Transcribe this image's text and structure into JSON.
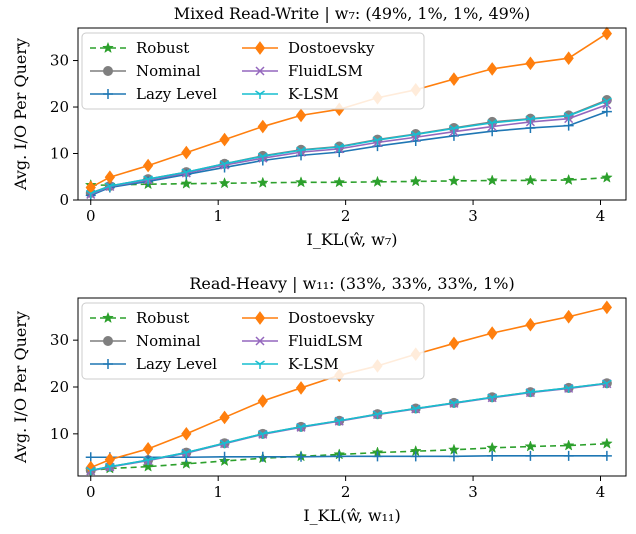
{
  "chart_data": [
    {
      "type": "line",
      "title": "Mixed Read-Write | w₇: (49%, 1%, 1%, 49%)",
      "xlabel": "I_KL(ŵ, w₇)",
      "ylabel": "Avg. I/O Per Query",
      "xlim": [
        -0.1,
        4.2
      ],
      "ylim": [
        0,
        37
      ],
      "xticks": [
        0,
        1,
        2,
        3,
        4
      ],
      "yticks": [
        0,
        10,
        20,
        30
      ],
      "legend": "top-left",
      "x": [
        0,
        0.15,
        0.45,
        0.75,
        1.05,
        1.35,
        1.65,
        1.95,
        2.25,
        2.55,
        2.85,
        3.15,
        3.45,
        3.75,
        4.05
      ],
      "series": [
        {
          "name": "Robust",
          "color": "#2ca02c",
          "marker": "star",
          "dash": "6,4",
          "values": [
            3.2,
            3.2,
            3.4,
            3.5,
            3.6,
            3.7,
            3.8,
            3.8,
            3.9,
            4.0,
            4.1,
            4.2,
            4.2,
            4.3,
            4.8
          ]
        },
        {
          "name": "Nominal",
          "color": "#7f7f7f",
          "marker": "circle",
          "dash": "",
          "values": [
            1.5,
            3.0,
            4.5,
            6.0,
            7.8,
            9.5,
            10.8,
            11.5,
            13.0,
            14.2,
            15.5,
            16.8,
            17.5,
            18.2,
            21.5
          ]
        },
        {
          "name": "Lazy Level",
          "color": "#1f77b4",
          "marker": "plus",
          "dash": "",
          "values": [
            1.0,
            2.7,
            4.0,
            5.5,
            7.0,
            8.5,
            9.6,
            10.3,
            11.6,
            12.7,
            13.8,
            14.8,
            15.5,
            16.0,
            19.0
          ]
        },
        {
          "name": "Dostoevsky",
          "color": "#ff7f0e",
          "marker": "diamond",
          "dash": "",
          "values": [
            2.7,
            4.9,
            7.4,
            10.2,
            13.0,
            15.8,
            18.2,
            19.5,
            22.0,
            23.7,
            26.0,
            28.2,
            29.4,
            30.5,
            35.8
          ]
        },
        {
          "name": "FluidLSM",
          "color": "#9467bd",
          "marker": "x",
          "dash": "",
          "values": [
            1.2,
            2.9,
            4.3,
            5.8,
            7.5,
            9.0,
            10.3,
            11.0,
            12.4,
            13.5,
            14.7,
            15.8,
            16.8,
            17.5,
            20.5
          ]
        },
        {
          "name": "K-LSM",
          "color": "#17becf",
          "marker": "tri",
          "dash": "",
          "values": [
            1.4,
            3.0,
            4.5,
            6.0,
            7.8,
            9.4,
            10.7,
            11.4,
            12.9,
            14.1,
            15.4,
            16.6,
            17.4,
            18.1,
            21.3
          ]
        }
      ]
    },
    {
      "type": "line",
      "title": "Read-Heavy | w₁₁: (33%, 33%, 33%, 1%)",
      "xlabel": "I_KL(ŵ, w₁₁)",
      "ylabel": "Avg. I/O Per Query",
      "xlim": [
        -0.1,
        4.2
      ],
      "ylim": [
        1,
        39
      ],
      "xticks": [
        0,
        1,
        2,
        3,
        4
      ],
      "yticks": [
        10,
        20,
        30
      ],
      "legend": "top-left",
      "x": [
        0,
        0.15,
        0.45,
        0.75,
        1.05,
        1.35,
        1.65,
        1.95,
        2.25,
        2.55,
        2.85,
        3.15,
        3.45,
        3.75,
        4.05
      ],
      "series": [
        {
          "name": "Robust",
          "color": "#2ca02c",
          "marker": "star",
          "dash": "6,4",
          "values": [
            2.2,
            2.6,
            3.0,
            3.6,
            4.2,
            4.8,
            5.2,
            5.6,
            6.0,
            6.3,
            6.6,
            7.0,
            7.3,
            7.5,
            7.9
          ]
        },
        {
          "name": "Nominal",
          "color": "#7f7f7f",
          "marker": "circle",
          "dash": "",
          "values": [
            2.2,
            3.0,
            4.4,
            6.0,
            8.0,
            10.0,
            11.5,
            12.8,
            14.2,
            15.4,
            16.6,
            17.8,
            18.9,
            19.8,
            20.8
          ]
        },
        {
          "name": "Lazy Level",
          "color": "#1f77b4",
          "marker": "plus",
          "dash": "",
          "values": [
            5.0,
            5.0,
            5.0,
            5.0,
            5.1,
            5.1,
            5.1,
            5.2,
            5.2,
            5.2,
            5.2,
            5.3,
            5.3,
            5.3,
            5.3
          ]
        },
        {
          "name": "Dostoevsky",
          "color": "#ff7f0e",
          "marker": "diamond",
          "dash": "",
          "values": [
            2.8,
            4.5,
            6.8,
            10.0,
            13.5,
            17.0,
            19.8,
            22.5,
            24.5,
            27.0,
            29.3,
            31.5,
            33.3,
            35.0,
            37.0
          ]
        },
        {
          "name": "FluidLSM",
          "color": "#9467bd",
          "marker": "x",
          "dash": "",
          "values": [
            2.1,
            2.9,
            4.3,
            5.9,
            7.9,
            9.9,
            11.4,
            12.7,
            14.1,
            15.3,
            16.5,
            17.7,
            18.8,
            19.7,
            20.7
          ]
        },
        {
          "name": "K-LSM",
          "color": "#17becf",
          "marker": "tri",
          "dash": "",
          "values": [
            2.2,
            3.0,
            4.4,
            6.0,
            8.0,
            10.0,
            11.5,
            12.8,
            14.2,
            15.4,
            16.6,
            17.8,
            18.9,
            19.8,
            20.8
          ]
        }
      ]
    }
  ]
}
